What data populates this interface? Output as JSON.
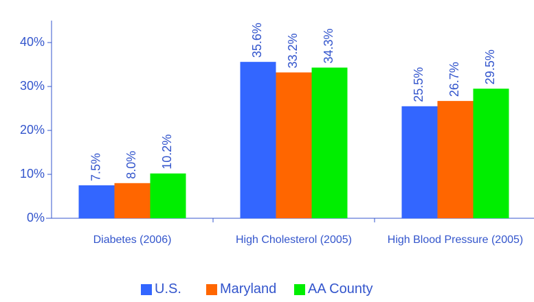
{
  "chart_data": {
    "type": "bar",
    "categories": [
      "Diabetes (2006)",
      "High Cholesterol (2005)",
      "High Blood Pressure (2005)"
    ],
    "series": [
      {
        "name": "U.S.",
        "color": "#3366ff",
        "values": [
          7.5,
          35.6,
          25.5
        ],
        "value_labels": [
          "7.5%",
          "35.6%",
          "25.5%"
        ]
      },
      {
        "name": "Maryland",
        "color": "#ff6600",
        "values": [
          8.0,
          33.2,
          26.7
        ],
        "value_labels": [
          "8.0%",
          "33.2%",
          "26.7%"
        ]
      },
      {
        "name": "AA County",
        "color": "#00ee00",
        "values": [
          10.2,
          34.3,
          29.5
        ],
        "value_labels": [
          "10.2%",
          "34.3%",
          "29.5%"
        ]
      }
    ],
    "ylim": [
      0,
      45
    ],
    "yticks": [
      {
        "value": 0,
        "label": "0%"
      },
      {
        "value": 10,
        "label": "10%"
      },
      {
        "value": 20,
        "label": "20%"
      },
      {
        "value": 30,
        "label": "30%"
      },
      {
        "value": 40,
        "label": "40%"
      }
    ],
    "grid": false
  }
}
